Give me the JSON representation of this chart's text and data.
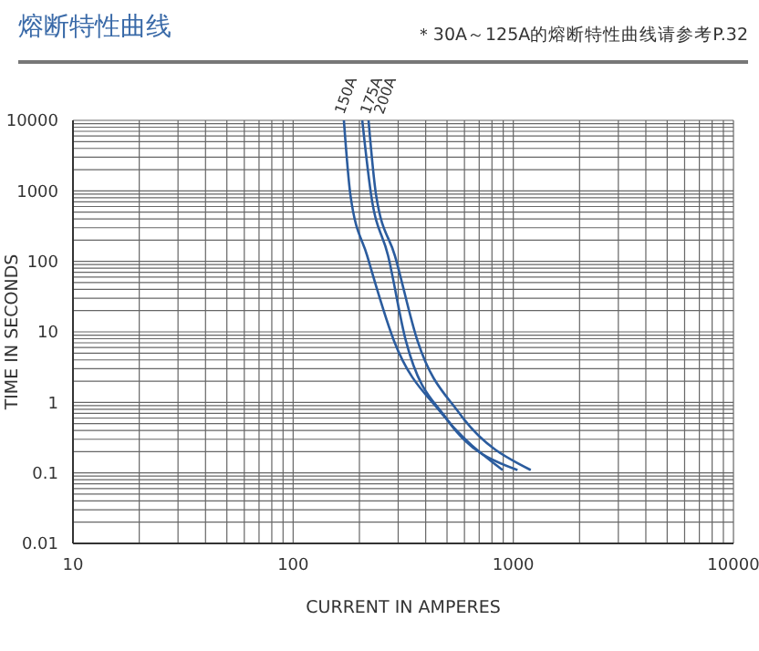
{
  "chart_data": {
    "type": "line",
    "title": "熔断特性曲线",
    "subtitle": "＊30A～125A的熔断特性曲线请参考P.32",
    "xlabel": "CURRENT IN AMPERES",
    "ylabel": "TIME IN SECONDS",
    "log": "xy",
    "grid": true,
    "marker": "none",
    "line_style": "solid",
    "xlim": [
      10,
      10000
    ],
    "ylim": [
      0.01,
      10000
    ],
    "xticks": [
      10,
      {
        "value": 20,
        "label": null
      },
      {
        "value": 30,
        "label": null
      },
      {
        "value": 40,
        "label": null
      },
      {
        "value": 50,
        "label": null
      },
      {
        "value": 60,
        "label": null
      },
      {
        "value": 70,
        "label": null
      },
      {
        "value": 80,
        "label": null
      },
      {
        "value": 90,
        "label": null
      },
      100,
      {
        "value": 200,
        "label": null
      },
      {
        "value": 300,
        "label": null
      },
      {
        "value": 400,
        "label": null
      },
      {
        "value": 500,
        "label": null
      },
      {
        "value": 600,
        "label": null
      },
      {
        "value": 700,
        "label": null
      },
      {
        "value": 800,
        "label": null
      },
      {
        "value": 900,
        "label": null
      },
      1000,
      {
        "value": 2000,
        "label": null
      },
      {
        "value": 3000,
        "label": null
      },
      {
        "value": 4000,
        "label": null
      },
      {
        "value": 5000,
        "label": null
      },
      {
        "value": 6000,
        "label": null
      },
      {
        "value": 7000,
        "label": null
      },
      {
        "value": 8000,
        "label": null
      },
      {
        "value": 9000,
        "label": null
      },
      10000
    ],
    "yticks": [
      0.01,
      {
        "value": 0.02,
        "label": null
      },
      {
        "value": 0.03,
        "label": null
      },
      {
        "value": 0.04,
        "label": null
      },
      {
        "value": 0.05,
        "label": null
      },
      {
        "value": 0.06,
        "label": null
      },
      {
        "value": 0.07,
        "label": null
      },
      {
        "value": 0.08,
        "label": null
      },
      {
        "value": 0.09,
        "label": null
      },
      0.1,
      {
        "value": 0.2,
        "label": null
      },
      {
        "value": 0.3,
        "label": null
      },
      {
        "value": 0.4,
        "label": null
      },
      {
        "value": 0.5,
        "label": null
      },
      {
        "value": 0.6,
        "label": null
      },
      {
        "value": 0.7,
        "label": null
      },
      {
        "value": 0.8,
        "label": null
      },
      {
        "value": 0.9,
        "label": null
      },
      1,
      {
        "value": 2,
        "label": null
      },
      {
        "value": 3,
        "label": null
      },
      {
        "value": 4,
        "label": null
      },
      {
        "value": 5,
        "label": null
      },
      {
        "value": 6,
        "label": null
      },
      {
        "value": 7,
        "label": null
      },
      {
        "value": 8,
        "label": null
      },
      {
        "value": 9,
        "label": null
      },
      10,
      {
        "value": 20,
        "label": null
      },
      {
        "value": 30,
        "label": null
      },
      {
        "value": 40,
        "label": null
      },
      {
        "value": 50,
        "label": null
      },
      {
        "value": 60,
        "label": null
      },
      {
        "value": 70,
        "label": null
      },
      {
        "value": 80,
        "label": null
      },
      {
        "value": 90,
        "label": null
      },
      100,
      {
        "value": 200,
        "label": null
      },
      {
        "value": 300,
        "label": null
      },
      {
        "value": 400,
        "label": null
      },
      {
        "value": 500,
        "label": null
      },
      {
        "value": 600,
        "label": null
      },
      {
        "value": 700,
        "label": null
      },
      {
        "value": 800,
        "label": null
      },
      {
        "value": 900,
        "label": null
      },
      1000,
      {
        "value": 2000,
        "label": null
      },
      {
        "value": 3000,
        "label": null
      },
      {
        "value": 4000,
        "label": null
      },
      {
        "value": 5000,
        "label": null
      },
      {
        "value": 6000,
        "label": null
      },
      {
        "value": 7000,
        "label": null
      },
      {
        "value": 8000,
        "label": null
      },
      {
        "value": 9000,
        "label": null
      },
      10000
    ],
    "series": [
      {
        "name": "150A",
        "color": "#2b5c9e",
        "x": [
          170,
          182,
          217,
          287,
          472,
          894
        ],
        "values": [
          10000,
          880,
          120,
          7.5,
          0.7,
          0.11
        ]
      },
      {
        "name": "175A",
        "color": "#2b5c9e",
        "x": [
          206,
          226,
          270,
          325,
          501,
          1045
        ],
        "values": [
          10000,
          880,
          120,
          7.5,
          0.57,
          0.11
        ]
      },
      {
        "name": "200A",
        "color": "#2b5c9e",
        "x": [
          220,
          238,
          290,
          367,
          569,
          1200
        ],
        "values": [
          10000,
          880,
          120,
          7.5,
          0.7,
          0.11
        ]
      }
    ]
  }
}
